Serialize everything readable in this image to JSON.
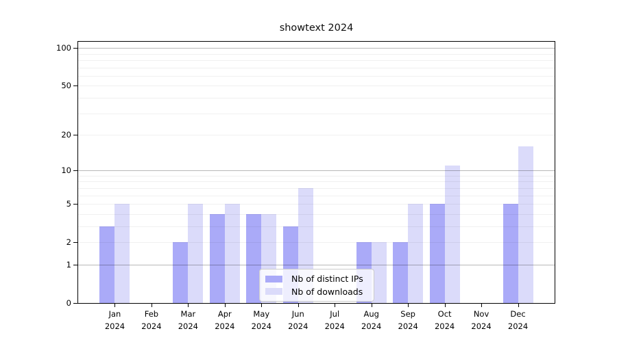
{
  "figure": {
    "title": "showtext 2024"
  },
  "chart_data": {
    "type": "bar",
    "title": "showtext 2024",
    "categories": [
      "Jan",
      "Feb",
      "Mar",
      "Apr",
      "May",
      "Jun",
      "Jul",
      "Aug",
      "Sep",
      "Oct",
      "Nov",
      "Dec"
    ],
    "category_year": "2024",
    "series": [
      {
        "name": "Nb of distinct IPs",
        "color": "#aaaaf8",
        "values": [
          3,
          0,
          2,
          4,
          4,
          3,
          0,
          2,
          2,
          5,
          0,
          5
        ]
      },
      {
        "name": "Nb of downloads",
        "color": "#dbdbfa",
        "values": [
          5,
          0,
          5,
          5,
          4,
          7,
          0,
          2,
          5,
          11,
          0,
          16
        ]
      }
    ],
    "yscale": "log1p",
    "yticks": [
      0,
      1,
      2,
      5,
      10,
      20,
      50,
      100
    ],
    "ylim": [
      0,
      114
    ],
    "grid": true,
    "legend_position": "lower center"
  }
}
